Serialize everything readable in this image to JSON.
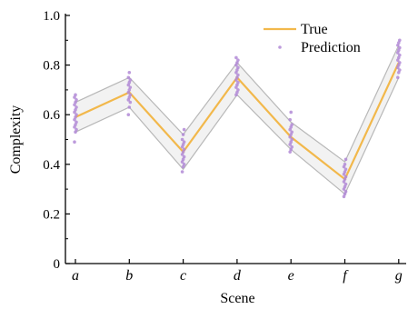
{
  "chart_data": {
    "type": "line",
    "title": "",
    "xlabel": "Scene",
    "ylabel": "Complexity",
    "categories": [
      "a",
      "b",
      "c",
      "d",
      "e",
      "f",
      "g"
    ],
    "ylim": [
      0,
      1.0
    ],
    "yticks": [
      "0",
      "0.2",
      "0.4",
      "0.6",
      "0.8",
      "1.0"
    ],
    "grid": false,
    "legend_position": "top-right",
    "series": [
      {
        "name": "True",
        "kind": "line",
        "color": "#f2b84b",
        "values": [
          0.59,
          0.69,
          0.45,
          0.75,
          0.51,
          0.34,
          0.81
        ]
      },
      {
        "name": "Prediction",
        "kind": "scatter",
        "color": "#b28ad6",
        "points": [
          {
            "x": "a",
            "y": [
              0.49,
              0.53,
              0.54,
              0.55,
              0.56,
              0.57,
              0.58,
              0.59,
              0.6,
              0.61,
              0.62,
              0.63,
              0.64,
              0.65,
              0.66,
              0.67,
              0.68
            ]
          },
          {
            "x": "b",
            "y": [
              0.6,
              0.63,
              0.65,
              0.66,
              0.67,
              0.68,
              0.69,
              0.7,
              0.71,
              0.72,
              0.73,
              0.74,
              0.75,
              0.77
            ]
          },
          {
            "x": "c",
            "y": [
              0.37,
              0.39,
              0.4,
              0.41,
              0.42,
              0.43,
              0.44,
              0.45,
              0.46,
              0.47,
              0.48,
              0.49,
              0.5,
              0.52,
              0.54
            ]
          },
          {
            "x": "d",
            "y": [
              0.68,
              0.69,
              0.7,
              0.71,
              0.72,
              0.73,
              0.74,
              0.75,
              0.76,
              0.77,
              0.78,
              0.79,
              0.8,
              0.81,
              0.82,
              0.83
            ]
          },
          {
            "x": "e",
            "y": [
              0.45,
              0.46,
              0.47,
              0.48,
              0.49,
              0.5,
              0.51,
              0.52,
              0.53,
              0.54,
              0.55,
              0.56,
              0.58,
              0.61
            ]
          },
          {
            "x": "f",
            "y": [
              0.27,
              0.28,
              0.29,
              0.3,
              0.31,
              0.32,
              0.33,
              0.34,
              0.35,
              0.36,
              0.37,
              0.38,
              0.39,
              0.4,
              0.42
            ]
          },
          {
            "x": "g",
            "y": [
              0.75,
              0.77,
              0.78,
              0.79,
              0.8,
              0.81,
              0.82,
              0.83,
              0.84,
              0.85,
              0.86,
              0.87,
              0.88,
              0.89,
              0.9
            ]
          }
        ]
      }
    ],
    "band": {
      "upper": [
        0.65,
        0.75,
        0.52,
        0.81,
        0.57,
        0.41,
        0.88
      ],
      "lower": [
        0.53,
        0.63,
        0.38,
        0.68,
        0.46,
        0.28,
        0.75
      ],
      "fill": "#f2f2f2",
      "edge": "#b8b8b8"
    }
  }
}
